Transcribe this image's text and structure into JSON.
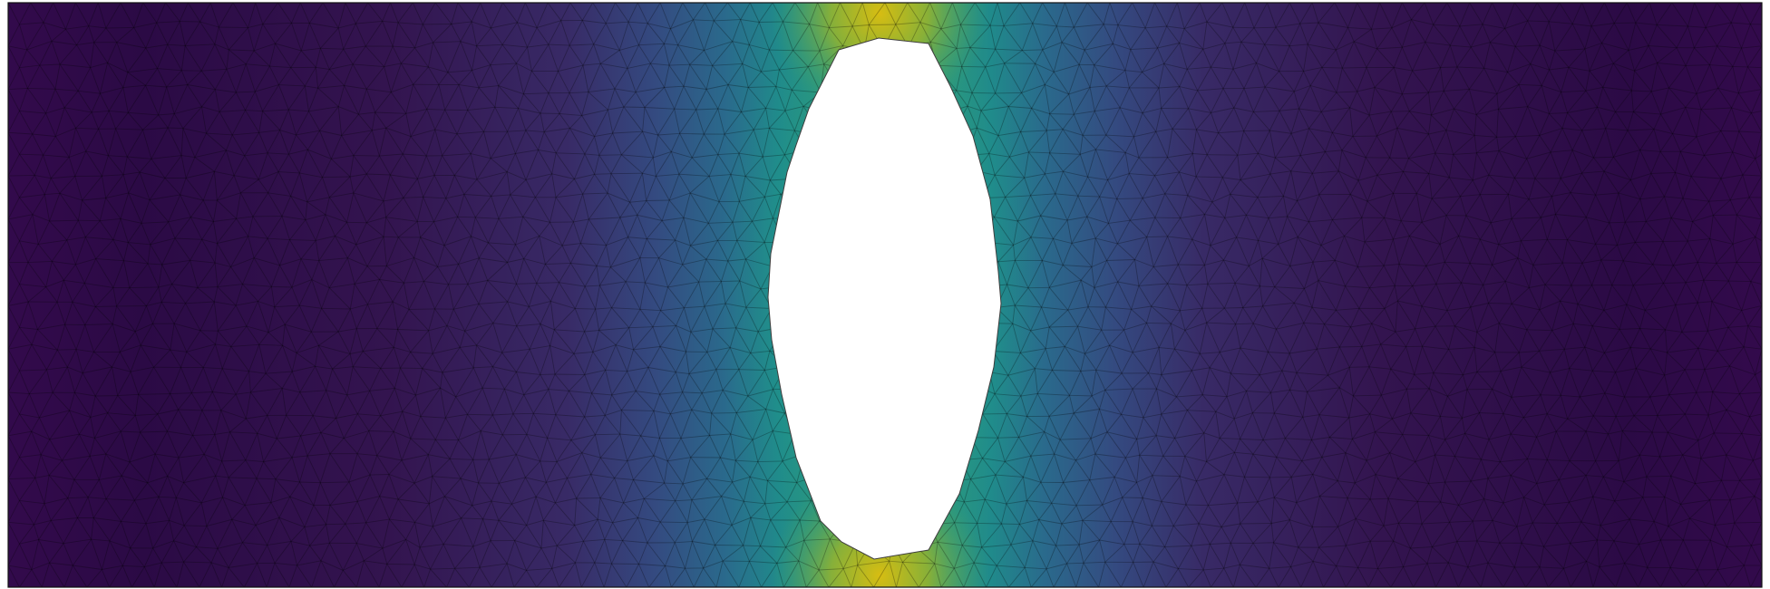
{
  "figure": {
    "description_type": "fem-mesh-field",
    "colormap": "viridis",
    "colors": {
      "field_low": "#2d0a45",
      "field_mid_low": "#36306e",
      "field_mid": "#2d6a8e",
      "field_mid_high": "#1f9a8a",
      "field_high": "#c9b81f",
      "mesh_edge": "#000000",
      "hole_fill": "#ffffff",
      "background": "#ffffff"
    }
  }
}
